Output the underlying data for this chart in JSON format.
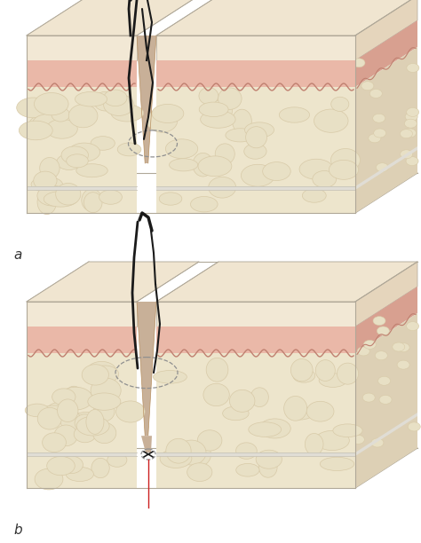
{
  "fig_width": 4.74,
  "fig_height": 6.12,
  "dpi": 100,
  "bg_color": "#ffffff",
  "label_a": "a",
  "label_b": "b",
  "colors": {
    "skin_cream": "#f2e8d5",
    "skin_cream_dark": "#e8d8c0",
    "dermis_pink": "#e8a898",
    "dermis_pink_dark": "#d89080",
    "dermis_fill": "#eab8a8",
    "fat_cream": "#ede5cc",
    "fat_cream_dark": "#ddd0b0",
    "fat_lobule_fill": "#e8e0c5",
    "fat_lobule_edge": "#d8caa8",
    "wound_tan": "#c8a878",
    "wound_shadow": "#b89060",
    "fascia_white": "#e0ddd5",
    "fascia_line": "#c8c4b8",
    "suture_black": "#1a1a1a",
    "suture_dark": "#333333",
    "suture_red": "#cc2020",
    "dashed_gray": "#909090",
    "edge_gray": "#b0a898",
    "edge_light": "#c8c0b0",
    "side_skin": "#e5d5bc",
    "side_derm": "#d8a090",
    "side_fat": "#ddd0b5",
    "top_skin": "#f0e5d0",
    "gap_inner": "#c8b098",
    "wave_red": "#c08070"
  }
}
